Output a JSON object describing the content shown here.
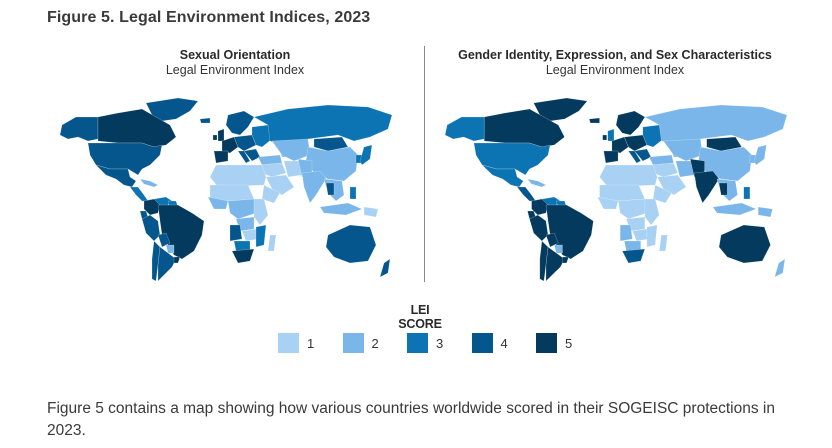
{
  "figure": {
    "title": "Figure 5. Legal Environment Indices, 2023",
    "caption": "Figure 5 contains a map showing how various countries worldwide scored in their SOGEISC protections in 2023."
  },
  "maps": [
    {
      "id": "sexual-orientation",
      "title": "Sexual Orientation",
      "subtitle": "Legal Environment Index"
    },
    {
      "id": "gender-identity",
      "title": "Gender Identity, Expression, and Sex Characteristics",
      "subtitle": "Legal Environment Index"
    }
  ],
  "legend": {
    "title": "LEI SCORE",
    "items": [
      {
        "score": 1,
        "label": "1",
        "color": "#a9d1f4"
      },
      {
        "score": 2,
        "label": "2",
        "color": "#7ab6ea"
      },
      {
        "score": 3,
        "label": "3",
        "color": "#0c74b2"
      },
      {
        "score": 4,
        "label": "4",
        "color": "#04568c"
      },
      {
        "score": 5,
        "label": "5",
        "color": "#033a5e"
      }
    ]
  },
  "chart_data": {
    "type": "choropleth",
    "title": "Figure 5. Legal Environment Indices, 2023",
    "scale": {
      "min": 1,
      "max": 5,
      "label": "LEI SCORE"
    },
    "maps": [
      {
        "title": "Sexual Orientation Legal Environment Index",
        "regions": {
          "alaska": 4,
          "canada": 5,
          "greenland": 4,
          "usa": 4,
          "mexico": 4,
          "central-america": 3,
          "caribbean": 2,
          "colombia": 5,
          "venezuela": 3,
          "guianas": 3,
          "ecuador": 4,
          "peru": 4,
          "brazil": 5,
          "bolivia": 4,
          "paraguay": 2,
          "chile": 4,
          "argentina": 4,
          "uruguay": 5,
          "iceland": 4,
          "uk": 5,
          "ireland": 5,
          "scandinavia": 4,
          "western-europe": 5,
          "iberia": 5,
          "central-europe": 4,
          "eastern-europe": 3,
          "balkans": 4,
          "italy": 4,
          "russia": 3,
          "turkey": 2,
          "caucasus": 2,
          "central-asia": 2,
          "mongolia": 4,
          "china": 2,
          "korea": 3,
          "japan": 3,
          "middle-east": 1,
          "arabia": 1,
          "iran": 1,
          "afghanistan-pakistan": 2,
          "india": 2,
          "southeast-asia": 2,
          "thailand": 4,
          "philippines": 3,
          "indonesia": 2,
          "png": 1,
          "north-africa": 1,
          "sahel": 1,
          "west-africa": 2,
          "central-africa": 2,
          "east-africa": 1,
          "horn-of-africa": 1,
          "angola": 4,
          "congo-basin": 2,
          "zambia": 1,
          "mozambique": 3,
          "botswana": 3,
          "south-africa": 5,
          "madagascar": 1,
          "australia": 4,
          "new-zealand": 4
        }
      },
      {
        "title": "Gender Identity, Expression, and Sex Characteristics Legal Environment Index",
        "regions": {
          "alaska": 3,
          "canada": 5,
          "greenland": 5,
          "usa": 3,
          "mexico": 3,
          "central-america": 4,
          "caribbean": 2,
          "colombia": 5,
          "venezuela": 3,
          "guianas": 3,
          "ecuador": 5,
          "peru": 5,
          "brazil": 5,
          "bolivia": 5,
          "paraguay": 2,
          "chile": 5,
          "argentina": 5,
          "uruguay": 5,
          "iceland": 5,
          "uk": 3,
          "ireland": 5,
          "scandinavia": 5,
          "western-europe": 5,
          "iberia": 5,
          "central-europe": 5,
          "eastern-europe": 3,
          "balkans": 4,
          "italy": 4,
          "russia": 2,
          "turkey": 2,
          "caucasus": 2,
          "central-asia": 2,
          "mongolia": 5,
          "china": 2,
          "korea": 2,
          "japan": 2,
          "middle-east": 1,
          "arabia": 1,
          "iran": 2,
          "afghanistan-pakistan": 5,
          "india": 5,
          "southeast-asia": 2,
          "thailand": 5,
          "philippines": 3,
          "indonesia": 2,
          "png": 2,
          "north-africa": 1,
          "sahel": 1,
          "west-africa": 1,
          "central-africa": 1,
          "east-africa": 1,
          "horn-of-africa": 1,
          "angola": 2,
          "congo-basin": 1,
          "zambia": 1,
          "mozambique": 1,
          "botswana": 2,
          "south-africa": 4,
          "madagascar": 1,
          "australia": 5,
          "new-zealand": 2
        }
      }
    ]
  }
}
